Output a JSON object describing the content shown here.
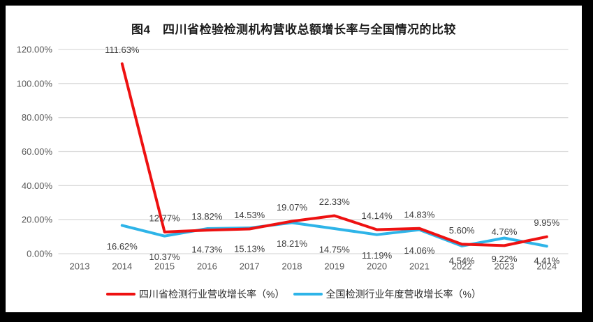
{
  "title": "图4　四川省检验检测机构营收总额增长率与全国情况的比较",
  "chart_data": {
    "type": "line",
    "categories": [
      "2013",
      "2014",
      "2015",
      "2016",
      "2017",
      "2018",
      "2019",
      "2020",
      "2021",
      "2022",
      "2023",
      "2024"
    ],
    "series": [
      {
        "name": "四川省检测行业营收增长率（%）",
        "color": "#ee1111",
        "label_position": "above",
        "values": [
          null,
          111.63,
          12.77,
          13.82,
          14.53,
          19.07,
          22.33,
          14.14,
          14.83,
          5.6,
          4.76,
          9.95
        ]
      },
      {
        "name": "全国检测行业年度营收增长率（%）",
        "color": "#2eb4e8",
        "label_position": "below",
        "values": [
          null,
          16.62,
          10.37,
          14.73,
          15.13,
          18.21,
          14.75,
          11.19,
          14.06,
          4.54,
          9.22,
          4.41
        ]
      }
    ],
    "y_ticks": [
      {
        "label": "0.00%",
        "value": 0
      },
      {
        "label": "20.00%",
        "value": 20
      },
      {
        "label": "40.00%",
        "value": 40
      },
      {
        "label": "60.00%",
        "value": 60
      },
      {
        "label": "80.00%",
        "value": 80
      },
      {
        "label": "100.00%",
        "value": 100
      },
      {
        "label": "120.00%",
        "value": 120
      }
    ],
    "ylim": [
      0,
      120
    ],
    "grid": true,
    "legend_position": "bottom",
    "data_label_format": "0.00%"
  },
  "colors": {
    "series_sichuan": "#ee1111",
    "series_national": "#2eb4e8",
    "gridline": "#d9d9d9",
    "axis_text": "#595959",
    "data_label_text": "#3d3d3d",
    "title_text": "#1a1a1a",
    "chart_background": "#ffffff",
    "frame_background": "#000000"
  }
}
